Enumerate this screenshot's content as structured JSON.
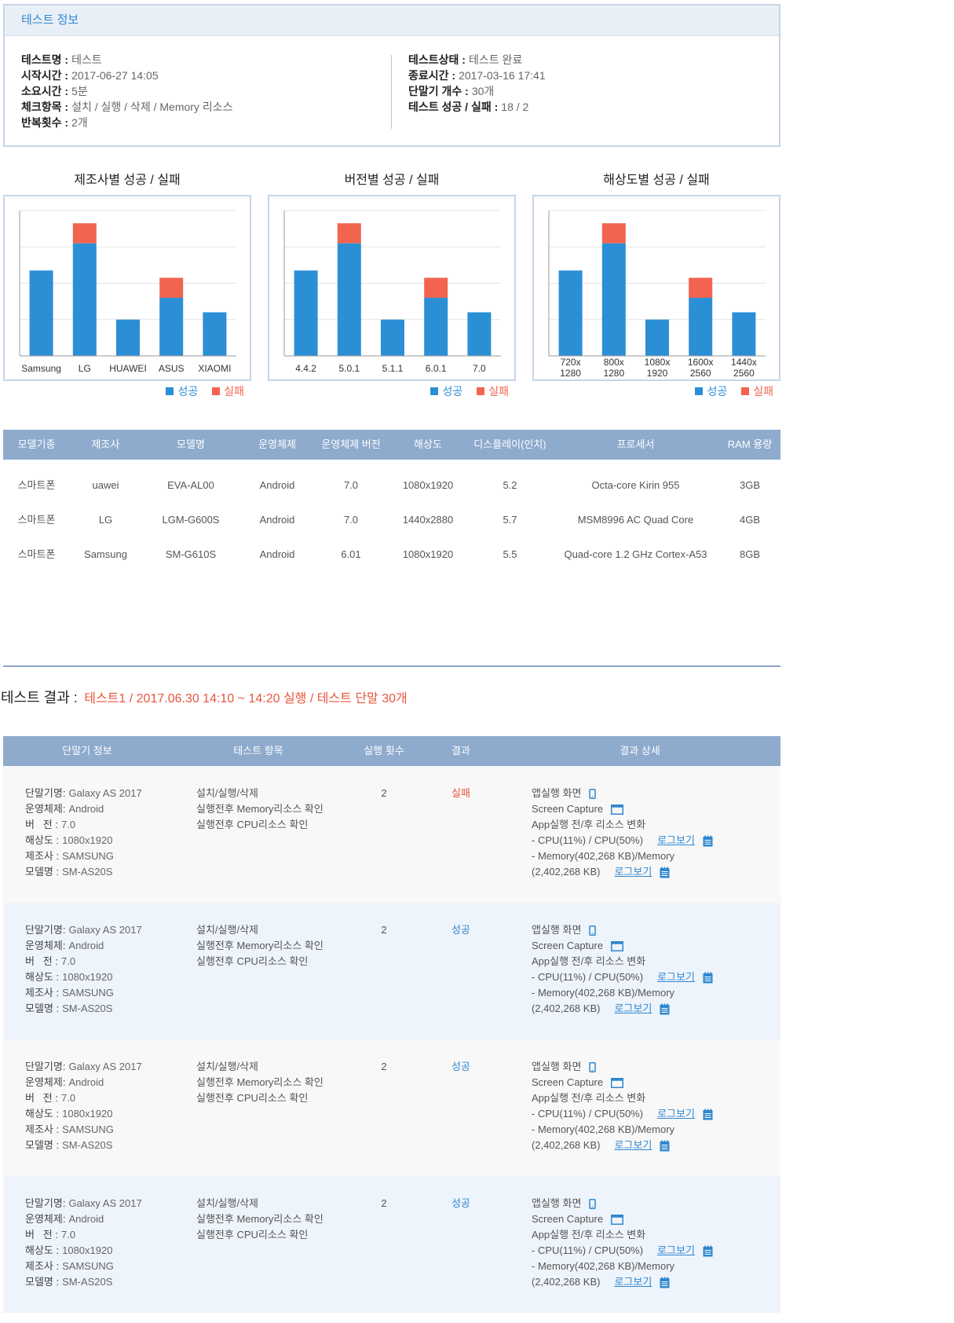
{
  "test_info": {
    "title": "테스트 정보",
    "left": [
      {
        "label": "테스트명 :",
        "value": "테스트"
      },
      {
        "label": "시작시간 :",
        "value": "2017-06-27 14:05"
      },
      {
        "label": "소요시간 :",
        "value": "5분"
      },
      {
        "label": "체크항목 :",
        "value": "설치 / 실행 / 삭제 / Memory 리소스"
      },
      {
        "label": "반복횟수 :",
        "value": "2개"
      }
    ],
    "right": [
      {
        "label": "테스트상태 :",
        "value": "테스트 완료"
      },
      {
        "label": "종료시간 :",
        "value": "2017-03-16 17:41"
      },
      {
        "label": "단말기 개수 :",
        "value": "30개"
      },
      {
        "label": "테스트 성공 / 실패 :",
        "value": "18 / 2"
      }
    ]
  },
  "chart_data": [
    {
      "type": "bar",
      "stacked": true,
      "title": "제조사별 성공 / 실패",
      "categories": [
        "Samsung",
        "LG",
        "HUAWEI",
        "ASUS",
        "XIAOMI"
      ],
      "series": [
        {
          "name": "성공",
          "values": [
            4.7,
            6.2,
            2.0,
            3.2,
            2.4
          ],
          "color": "#2b8fd6"
        },
        {
          "name": "실패",
          "values": [
            0,
            1.1,
            0,
            1.1,
            0
          ],
          "color": "#f2644f"
        }
      ],
      "ylim": [
        0,
        8
      ],
      "grid": true,
      "legend_position": "bottom-right"
    },
    {
      "type": "bar",
      "stacked": true,
      "title": "버전별 성공 / 실패",
      "categories": [
        "4.4.2",
        "5.0.1",
        "5.1.1",
        "6.0.1",
        "7.0"
      ],
      "series": [
        {
          "name": "성공",
          "values": [
            4.7,
            6.2,
            2.0,
            3.2,
            2.4
          ],
          "color": "#2b8fd6"
        },
        {
          "name": "실패",
          "values": [
            0,
            1.1,
            0,
            1.1,
            0
          ],
          "color": "#f2644f"
        }
      ],
      "ylim": [
        0,
        8
      ],
      "grid": true,
      "legend_position": "bottom-right"
    },
    {
      "type": "bar",
      "stacked": true,
      "title": "해상도별 성공 / 실패",
      "categories": [
        [
          "720x",
          "1280"
        ],
        [
          "800x",
          "1280"
        ],
        [
          "1080x",
          "1920"
        ],
        [
          "1600x",
          "2560"
        ],
        [
          "1440x",
          "2560"
        ]
      ],
      "series": [
        {
          "name": "성공",
          "values": [
            4.7,
            6.2,
            2.0,
            3.2,
            2.4
          ],
          "color": "#2b8fd6"
        },
        {
          "name": "실패",
          "values": [
            0,
            1.1,
            0,
            1.1,
            0
          ],
          "color": "#f2644f"
        }
      ],
      "ylim": [
        0,
        8
      ],
      "grid": true,
      "legend_position": "bottom-right"
    }
  ],
  "device_table": {
    "headers": [
      "모델기종",
      "제조사",
      "모델명",
      "운영체제",
      "운영체제 버전",
      "해상도",
      "디스플레이(인치)",
      "프로세서",
      "RAM 용량"
    ],
    "rows": [
      [
        "스마트폰",
        "uawei",
        "EVA-AL00",
        "Android",
        "7.0",
        "1080x1920",
        "5.2",
        "Octa-core Kirin 955",
        "3GB"
      ],
      [
        "스마트폰",
        "LG",
        "LGM-G600S",
        "Android",
        "7.0",
        "1440x2880",
        "5.7",
        "MSM8996 AC Quad Core",
        "4GB"
      ],
      [
        "스마트폰",
        "Samsung",
        "SM-G610S",
        "Android",
        "6.01",
        "1080x1920",
        "5.5",
        "Quad-core 1.2 GHz Cortex-A53",
        "8GB"
      ]
    ]
  },
  "results": {
    "title_label": "테스트 결과 :",
    "title_detail": "테스트1 / 2017.06.30 14:10 ~ 14:20 실행 / 테스트 단말 30개",
    "headers": [
      "단말기 정보",
      "테스트 항목",
      "실행 횟수",
      "결과",
      "결과 상세"
    ],
    "device_labels": [
      "단말기명:",
      "운영체제:",
      "버   전 :",
      "해상도 :",
      "제조사 :",
      "모델명 :"
    ],
    "detail_labels": {
      "screen": "앱실행 화면",
      "capture": "Screen Capture",
      "resource": "App실행 전/후 리소스 변화",
      "log_link": "로그보기"
    },
    "rows": [
      {
        "device": [
          "Galaxy AS 2017",
          "Android",
          "7.0",
          "1080x1920",
          "SAMSUNG",
          "SM-AS20S"
        ],
        "test_items": [
          "설치/실행/삭제",
          "실행전후 Memory리소스 확인",
          "실행전후 CPU리소스 확인"
        ],
        "run_count": "2",
        "result": "실패",
        "result_color": "#e8553e",
        "cpu": "- CPU(11%) / CPU(50%)",
        "memory_1": "- Memory(402,268 KB)/Memory",
        "memory_2": "(2,402,268 KB)"
      },
      {
        "device": [
          "Galaxy AS 2017",
          "Android",
          "7.0",
          "1080x1920",
          "SAMSUNG",
          "SM-AS20S"
        ],
        "test_items": [
          "설치/실행/삭제",
          "실행전후 Memory리소스 확인",
          "실행전후 CPU리소스 확인"
        ],
        "run_count": "2",
        "result": "성공",
        "result_color": "#2f87d0",
        "cpu": "- CPU(11%) / CPU(50%)",
        "memory_1": "- Memory(402,268 KB)/Memory",
        "memory_2": "(2,402,268 KB)"
      },
      {
        "device": [
          "Galaxy AS 2017",
          "Android",
          "7.0",
          "1080x1920",
          "SAMSUNG",
          "SM-AS20S"
        ],
        "test_items": [
          "설치/실행/삭제",
          "실행전후 Memory리소스 확인",
          "실행전후 CPU리소스 확인"
        ],
        "run_count": "2",
        "result": "성공",
        "result_color": "#2f87d0",
        "cpu": "- CPU(11%) / CPU(50%)",
        "memory_1": "- Memory(402,268 KB)/Memory",
        "memory_2": "(2,402,268 KB)"
      },
      {
        "device": [
          "Galaxy AS 2017",
          "Android",
          "7.0",
          "1080x1920",
          "SAMSUNG",
          "SM-AS20S"
        ],
        "test_items": [
          "설치/실행/삭제",
          "실행전후 Memory리소스 확인",
          "실행전후 CPU리소스 확인"
        ],
        "run_count": "2",
        "result": "성공",
        "result_color": "#2f87d0",
        "cpu": "- CPU(11%) / CPU(50%)",
        "memory_1": "- Memory(402,268 KB)/Memory",
        "memory_2": "(2,402,268 KB)"
      }
    ]
  },
  "colors": {
    "accent": "#2f87d0",
    "table_header": "#8eaacd",
    "fail": "#e8553e"
  }
}
